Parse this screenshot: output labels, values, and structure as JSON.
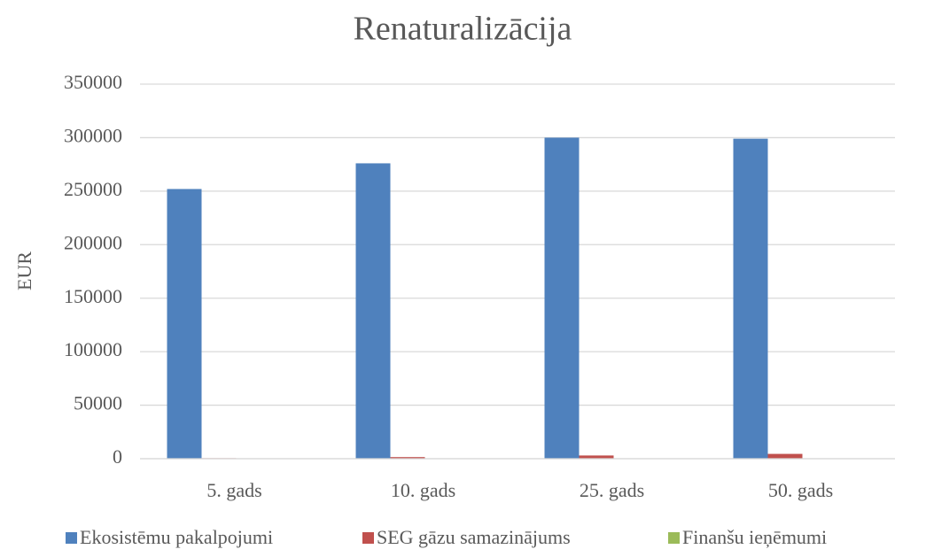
{
  "chart_data": {
    "type": "bar",
    "title": "Renaturalizācija",
    "y_label": "EUR",
    "categories": [
      "5. gads",
      "10. gads",
      "25. gads",
      "50. gads"
    ],
    "series": [
      {
        "name": "Ekosistēmu pakalpojumi",
        "color": "#4f81bd",
        "values": [
          252000,
          276000,
          300000,
          299000
        ]
      },
      {
        "name": "SEG gāzu samazinājums",
        "color": "#c0504d",
        "values": [
          500,
          1500,
          3000,
          4500
        ]
      },
      {
        "name": "Finanšu ieņēmumi",
        "color": "#9bbb59",
        "values": [
          0,
          0,
          0,
          0
        ]
      }
    ],
    "ylim": [
      0,
      350000
    ],
    "yticks": [
      0,
      50000,
      100000,
      150000,
      200000,
      250000,
      300000,
      350000
    ],
    "grid": true
  }
}
